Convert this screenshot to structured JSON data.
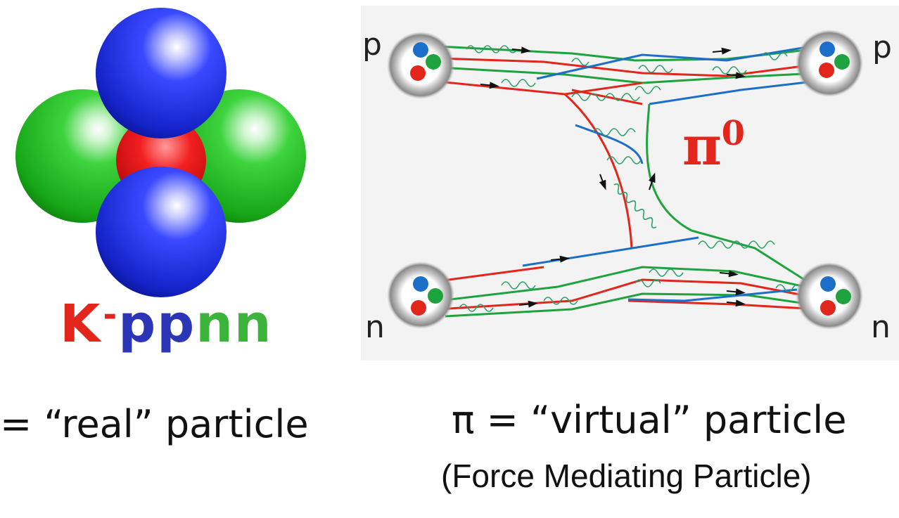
{
  "molecule": {
    "name_parts": [
      {
        "text": "K",
        "color": "#e3261c"
      },
      {
        "text": "-",
        "color": "#e3261c"
      },
      {
        "text": "pp",
        "color": "#2a36b5"
      },
      {
        "text": "nn",
        "color": "#3cb43c"
      }
    ],
    "caption": "= “real” particle"
  },
  "feynman": {
    "nucleon_top_left": "p",
    "nucleon_top_right": "p",
    "nucleon_bottom_left": "n",
    "nucleon_bottom_right": "n",
    "pion_symbol": "π",
    "pion_charge": "0",
    "caption": "π = “virtual” particle",
    "subcaption": "(Force Mediating Particle)"
  },
  "colors": {
    "quark_red": "#e3261c",
    "quark_green": "#1fa33f",
    "quark_blue": "#1c6fc9",
    "sphere_blue": "#1a2bd6",
    "sphere_green": "#22b822",
    "sphere_red": "#e01010"
  }
}
